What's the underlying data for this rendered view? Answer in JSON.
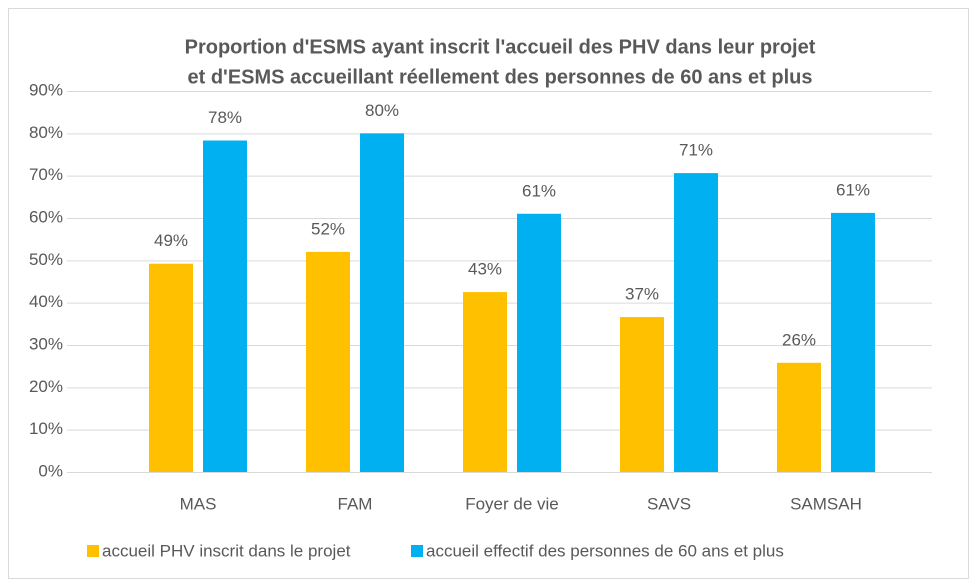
{
  "chart_data": {
    "type": "bar",
    "title": [
      "Proportion d'ESMS ayant inscrit l'accueil des PHV dans leur projet",
      "et d'ESMS accueillant réellement des personnes de 60 ans et plus"
    ],
    "categories": [
      "MAS",
      "FAM",
      "Foyer de vie",
      "SAVS",
      "SAMSAH"
    ],
    "series": [
      {
        "name": "accueil PHV inscrit dans le projet",
        "color": "#ffc000",
        "values": [
          49.2,
          52,
          42.5,
          36.6,
          25.8
        ],
        "value_labels": [
          "49%",
          "52%",
          "43%",
          "37%",
          "26%"
        ]
      },
      {
        "name": "accueil effectif des personnes de 60 ans et plus",
        "color": "#00b0f0",
        "values": [
          78.3,
          80,
          61,
          70.6,
          61.2
        ],
        "value_labels": [
          "78%",
          "80%",
          "61%",
          "71%",
          "61%"
        ]
      }
    ],
    "ylim": [
      0,
      90
    ],
    "yticks": [
      {
        "value": 0,
        "label": "0%"
      },
      {
        "value": 10,
        "label": "10%"
      },
      {
        "value": 20,
        "label": "20%"
      },
      {
        "value": 30,
        "label": "30%"
      },
      {
        "value": 40,
        "label": "40%"
      },
      {
        "value": 50,
        "label": "50%"
      },
      {
        "value": 60,
        "label": "60%"
      },
      {
        "value": 70,
        "label": "70%"
      },
      {
        "value": 80,
        "label": "80%"
      },
      {
        "value": 90,
        "label": "90%"
      }
    ],
    "grid": true,
    "legend": "bottom"
  }
}
